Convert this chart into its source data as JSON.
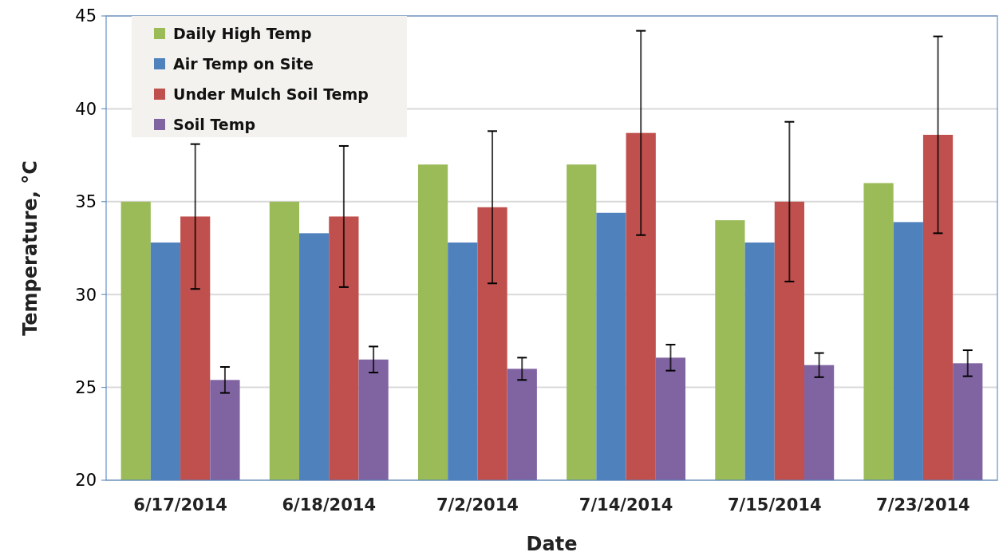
{
  "chart_data": {
    "type": "bar",
    "xlabel": "Date",
    "ylabel": "Temperature, °C",
    "categories": [
      "6/17/2014",
      "6/18/2014",
      "7/2/2014",
      "7/14/2014",
      "7/15/2014",
      "7/23/2014"
    ],
    "series": [
      {
        "name": "Daily High Temp",
        "color": "#9bbb59",
        "values": [
          35,
          35,
          37,
          37,
          34,
          36
        ]
      },
      {
        "name": "Air Temp on Site",
        "color": "#4f81bd",
        "values": [
          32.8,
          33.3,
          32.8,
          34.4,
          32.8,
          33.9
        ]
      },
      {
        "name": "Under Mulch Soil Temp",
        "color": "#c0504d",
        "values": [
          34.2,
          34.2,
          34.7,
          38.7,
          35.0,
          38.6
        ],
        "errors": [
          3.9,
          3.8,
          4.1,
          5.5,
          4.3,
          5.3
        ]
      },
      {
        "name": "Soil Temp",
        "color": "#8064a2",
        "values": [
          25.4,
          26.5,
          26.0,
          26.6,
          26.2,
          26.3
        ],
        "errors": [
          0.7,
          0.7,
          0.6,
          0.7,
          0.65,
          0.7
        ]
      }
    ],
    "ylim": [
      20,
      45
    ],
    "yticks": [
      20,
      25,
      30,
      35,
      40,
      45
    ],
    "grid": "y",
    "legend": "top left"
  }
}
